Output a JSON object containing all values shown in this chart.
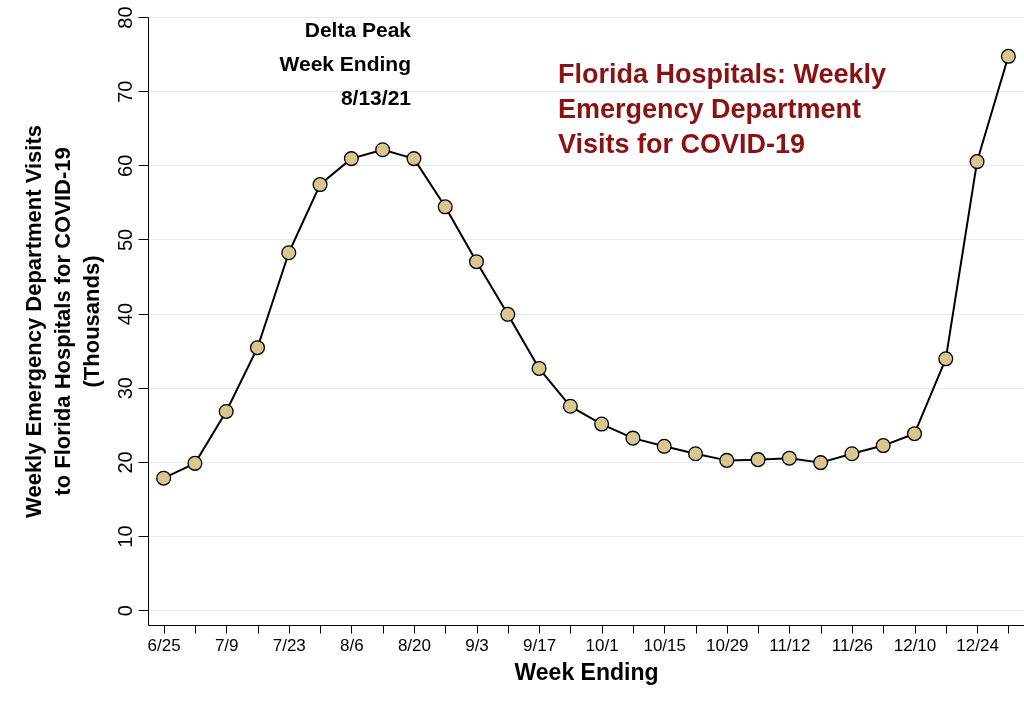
{
  "chart_data": {
    "type": "line",
    "title": "Florida Hospitals: Weekly Emergency Department Visits for COVID-19",
    "xlabel": "Week Ending",
    "ylabel": "Weekly Emergency Department Visits to Florida Hospitals for COVID-19 (Thousands)",
    "annotations": [
      "Delta Peak\nWeek Ending\n8/13/21"
    ],
    "categories": [
      "6/25",
      null,
      "7/9",
      null,
      "7/23",
      null,
      "8/6",
      null,
      "8/20",
      null,
      "9/3",
      null,
      "9/17",
      null,
      "10/1",
      null,
      "10/15",
      null,
      "10/29",
      null,
      "11/12",
      null,
      "11/26",
      null,
      "12/10",
      null,
      "12/24",
      null
    ],
    "series": [
      {
        "color": "#d8c78f",
        "values": [
          17.8,
          19.8,
          26.8,
          35.4,
          48.2,
          57.4,
          60.9,
          62.1,
          60.9,
          54.4,
          47.0,
          39.9,
          32.6,
          27.5,
          25.1,
          23.2,
          22.1,
          21.1,
          20.2,
          20.3,
          20.5,
          19.9,
          21.1,
          22.2,
          23.8,
          33.9,
          60.5,
          74.7
        ]
      }
    ],
    "ylim": [
      -2,
      80
    ],
    "yticks": [
      0,
      10,
      20,
      30,
      40,
      50,
      60,
      70,
      80
    ],
    "grid": "y",
    "marker": "circle",
    "line_style": "solid"
  }
}
